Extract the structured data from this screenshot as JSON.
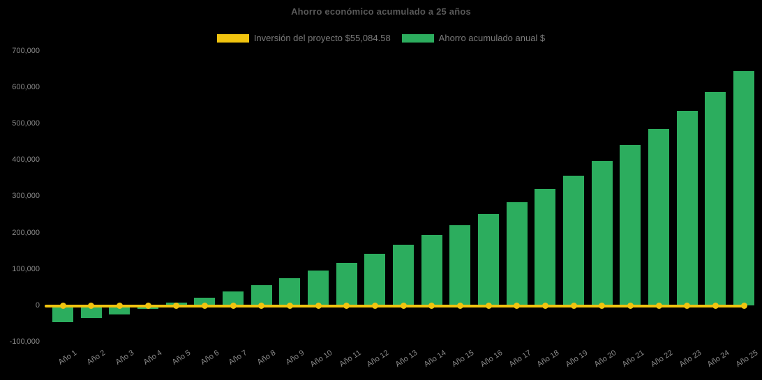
{
  "chart_data": {
    "type": "bar",
    "title": "Ahorro económico acumulado a 25 años",
    "categories": [
      "Año 1",
      "Año 2",
      "Año 3",
      "Año 4",
      "Año 5",
      "Año 6",
      "Año 7",
      "Año 8",
      "Año 9",
      "Año 10",
      "Año 11",
      "Año 12",
      "Año 13",
      "Año 14",
      "Año 15",
      "Año 16",
      "Año 17",
      "Año 18",
      "Año 19",
      "Año 20",
      "Año 21",
      "Año 22",
      "Año 23",
      "Año 24",
      "Año 25"
    ],
    "series": [
      {
        "name": "Inversión del proyecto $55,084.58",
        "type": "line",
        "color": "#F1C40F",
        "values": [
          0,
          0,
          0,
          0,
          0,
          0,
          0,
          0,
          0,
          0,
          0,
          0,
          0,
          0,
          0,
          0,
          0,
          0,
          0,
          0,
          0,
          0,
          0,
          0,
          0
        ]
      },
      {
        "name": "Ahorro acumulado anual $",
        "type": "bar",
        "color": "#2CAD5E",
        "values": [
          -45000,
          -33000,
          -24000,
          -9000,
          8000,
          22000,
          39000,
          57000,
          76000,
          96000,
          117000,
          143000,
          167000,
          194000,
          222000,
          252000,
          285000,
          320000,
          357000,
          397000,
          442000,
          485000,
          536000,
          588000,
          645000
        ]
      }
    ],
    "legend": [
      {
        "label": "Inversión del proyecto $55,084.58",
        "color": "#F1C40F"
      },
      {
        "label": "Ahorro acumulado anual $",
        "color": "#2CAD5E"
      }
    ],
    "yticks": [
      {
        "value": 700000,
        "label": "700,000"
      },
      {
        "value": 600000,
        "label": "600,000"
      },
      {
        "value": 500000,
        "label": "500,000"
      },
      {
        "value": 400000,
        "label": "400,000"
      },
      {
        "value": 300000,
        "label": "300,000"
      },
      {
        "value": 200000,
        "label": "200,000"
      },
      {
        "value": 100000,
        "label": "100,000"
      },
      {
        "value": 0,
        "label": "0"
      },
      {
        "value": -100000,
        "label": "-100,000"
      }
    ],
    "ylim": [
      -100000,
      700000
    ],
    "xlabel": "",
    "ylabel": "",
    "grid": false,
    "legend_position": "top",
    "background": "#000000",
    "text_color": "#8a8a8a"
  }
}
